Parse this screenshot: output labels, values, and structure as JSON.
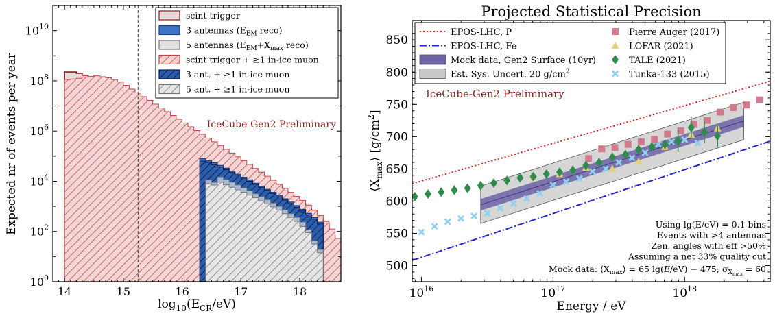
{
  "chart_data": [
    {
      "type": "bar",
      "subtype": "stepped-histogram",
      "xlabel": "log10(E_CR/eV)",
      "ylabel": "Expected nr of events per year",
      "xlim": [
        13.8,
        18.7
      ],
      "ylim_log10": [
        0,
        11
      ],
      "yscale": "log",
      "xticks": [
        "14",
        "15",
        "16",
        "17",
        "18"
      ],
      "yticks": [
        "10^0",
        "10^2",
        "10^4",
        "10^6",
        "10^8",
        "10^10"
      ],
      "annotation": "IceCube-Gen2 Preliminary",
      "vline_x": 15.25,
      "legend_position": "upper-right",
      "legend": [
        {
          "label": "scint trigger",
          "color": "#8b1a1a",
          "fill": "#e8dad8",
          "hatch": false
        },
        {
          "label": "3 antennas (E",
          "sub": "EM",
          "label2": " reco)",
          "color": "#2a5daa",
          "fill": "#3d74c6",
          "hatch": false
        },
        {
          "label": "5 antennas (E",
          "sub": "EM",
          "label2": "+X",
          "sub2": "max",
          "label3": " reco)",
          "color": "#777777",
          "fill": "#e2e2e2",
          "hatch": false
        },
        {
          "label": "scint trigger +  ≥1 in-ice muon",
          "color": "#c04545",
          "fill": "#f3d5d5",
          "hatch": true
        },
        {
          "label": "3 ant. +  ≥1 in-ice muon",
          "color": "#0a2f7a",
          "fill": "#2a5daa",
          "hatch": true
        },
        {
          "label": "5 ant. +  ≥1 in-ice muon",
          "color": "#777777",
          "fill": "#dddddd",
          "hatch": true
        }
      ],
      "bin_edges_start": 14.0,
      "bin_width": 0.1,
      "series": [
        {
          "name": "scint trigger",
          "start": 14.0,
          "log10_values": [
            8.35,
            8.35,
            8.3,
            8.22,
            8.13,
            8.04,
            7.93,
            7.82,
            7.72,
            7.6,
            7.47,
            7.33,
            7.2,
            7.06,
            6.92,
            6.78,
            6.64,
            6.5,
            6.36,
            6.22,
            6.08,
            5.93,
            5.79,
            5.65,
            5.51,
            5.37,
            5.23,
            5.08,
            4.94,
            4.8,
            4.66,
            4.51,
            4.36,
            4.22,
            4.06,
            3.91,
            3.76,
            3.59,
            3.43,
            3.27,
            3.1,
            2.92,
            2.73,
            2.52,
            2.28,
            1.85,
            1.5,
            1.15,
            0.95,
            0.25
          ]
        },
        {
          "name": "3 antennas",
          "start": 16.3,
          "log10_values": [
            4.9,
            4.82,
            4.74,
            4.63,
            4.52,
            4.4,
            4.28,
            4.16,
            4.05,
            3.92,
            3.8,
            3.68,
            3.56,
            3.43,
            3.3,
            3.17,
            3.03,
            2.88,
            2.72,
            2.55,
            2.37
          ]
        },
        {
          "name": "5 antennas",
          "start": 16.4,
          "log10_values": [
            4.05,
            3.95,
            4.17,
            4.06,
            3.96,
            3.85,
            3.73,
            3.62,
            3.5,
            3.38,
            3.26,
            3.13,
            3.0,
            2.86,
            2.71,
            2.56,
            2.37,
            2.07,
            1.62,
            1.28
          ]
        },
        {
          "name": "scint trigger + >=1 in-ice muon",
          "start": 14.0,
          "log10_values": [
            8.05,
            8.07,
            8.1,
            8.15,
            8.18,
            8.2,
            8.16,
            8.12,
            8.05,
            7.95,
            7.82,
            7.67,
            7.52,
            7.37,
            7.22,
            7.07,
            6.92,
            6.77,
            6.62,
            6.47,
            6.32,
            6.17,
            6.02,
            5.87,
            5.72,
            5.57,
            5.42,
            5.27,
            5.12,
            4.97,
            4.82,
            4.67,
            4.51,
            4.36,
            4.2,
            4.04,
            3.88,
            3.72,
            3.56,
            3.4,
            3.23,
            3.05,
            2.85,
            2.64,
            2.4,
            2.1,
            1.72,
            1.35,
            1.05,
            0.45
          ]
        },
        {
          "name": "3 ant. + >=1 in-ice muon",
          "start": 16.3,
          "log10_values": [
            4.8,
            4.75,
            4.66,
            4.57,
            4.46,
            4.35,
            4.24,
            4.12,
            4.0,
            3.88,
            3.76,
            3.64,
            3.51,
            3.38,
            3.25,
            3.11,
            2.97,
            2.82,
            2.66,
            2.49,
            2.3
          ]
        },
        {
          "name": "5 ant. + >=1 in-ice muon",
          "start": 16.4,
          "log10_values": [
            3.9,
            3.85,
            3.96,
            3.86,
            3.76,
            3.66,
            3.56,
            3.45,
            3.34,
            3.22,
            3.1,
            2.98,
            2.85,
            2.71,
            2.56,
            2.4,
            2.2,
            1.95,
            1.5,
            1.15
          ]
        }
      ]
    },
    {
      "type": "scatter",
      "title": "Projected Statistical Precision",
      "xlabel": "Energy / eV",
      "ylabel": "⟨X",
      "ylabel_sub": "max",
      "ylabel_end": "⟩ [g/cm",
      "ylabel_sup": "2",
      "ylabel_close": "]",
      "xscale": "log",
      "xlim_log10": [
        15.93,
        18.65
      ],
      "ylim": [
        475,
        880
      ],
      "xticks": [
        {
          "base": "10",
          "exp": "16"
        },
        {
          "base": "10",
          "exp": "17"
        },
        {
          "base": "10",
          "exp": "18"
        }
      ],
      "yticks": [
        "500",
        "550",
        "600",
        "650",
        "700",
        "750",
        "800",
        "850"
      ],
      "annotation": "IceCube-Gen2 Preliminary",
      "notes": [
        "Using lg(E/eV) = 0.1 bins",
        "Events with >4 antennas",
        "Zen. angles with eff >50%",
        "Assuming a net 33% quality cut"
      ],
      "mock_note": {
        "prefix": "Mock data: ⟨X",
        "sub": "max",
        "mid": "⟩ = 65 lg(",
        "ital": "E",
        "mid2": "/eV) − 475; σ",
        "sub2": "X",
        "sub3": "max",
        "end": " = 60"
      },
      "legend_left": [
        {
          "label": "EPOS-LHC, P",
          "style": "dotted",
          "color": "#e31a1c"
        },
        {
          "label": "EPOS-LHC, Fe",
          "style": "dashdot",
          "color": "#1f24d6"
        },
        {
          "label": "Mock data, Gen2 Surface (10yr)",
          "style": "band",
          "color": "#6b63a6"
        },
        {
          "label": "Est. Sys. Uncert. 20 g/cm",
          "sup": "2",
          "style": "band",
          "color": "#c8c8c8"
        }
      ],
      "legend_right": [
        {
          "label": "Pierre Auger (2017)",
          "marker": "square",
          "color": "#d27b8c"
        },
        {
          "label": "LOFAR (2021)",
          "marker": "triangle",
          "color": "#e6d07a"
        },
        {
          "label": "TALE (2021)",
          "marker": "diamond",
          "color": "#2e8b4a"
        },
        {
          "label": "Tunka-133 (2015)",
          "marker": "cross",
          "color": "#8fd0ef"
        }
      ],
      "lines": {
        "epos_p": {
          "x_log10": [
            15.93,
            18.65
          ],
          "y": [
            627,
            786
          ]
        },
        "epos_fe": {
          "x_log10": [
            15.93,
            18.65
          ],
          "y": [
            508,
            693
          ]
        }
      },
      "mock_band": {
        "x_log10": [
          16.45,
          18.45
        ],
        "y_center": [
          594.25,
          724.25
        ],
        "stat_half": 9,
        "sys_half": 29
      },
      "series": [
        {
          "name": "Pierre Auger (2017)",
          "x_log10": [
            17.27,
            17.37,
            17.47,
            17.57,
            17.67,
            17.77,
            17.87,
            17.97,
            18.07,
            18.17,
            18.27,
            18.37,
            18.47,
            18.57,
            18.67
          ],
          "y": [
            666,
            681,
            683,
            688,
            692,
            696,
            704,
            709,
            719,
            725,
            738,
            745,
            749,
            757,
            758
          ]
        },
        {
          "name": "LOFAR (2021)",
          "x_log10": [
            16.85,
            17.05,
            17.25,
            17.45,
            17.65,
            17.85,
            18.05,
            18.25
          ],
          "y": [
            638,
            642,
            652,
            650,
            661,
            684,
            703,
            713
          ]
        },
        {
          "name": "TALE (2021)",
          "x_log10": [
            15.95,
            16.05,
            16.15,
            16.25,
            16.35,
            16.45,
            16.55,
            16.65,
            16.75,
            16.85,
            16.95,
            17.05,
            17.15,
            17.25,
            17.35,
            17.45,
            17.55,
            17.65,
            17.75,
            17.85,
            17.95,
            18.05,
            18.15,
            18.25
          ],
          "y": [
            607,
            611,
            614,
            617,
            620,
            624,
            628,
            632,
            636,
            638,
            642,
            645,
            648,
            655,
            660,
            668,
            672,
            680,
            684,
            688,
            693,
            714,
            707,
            701
          ]
        },
        {
          "name": "Tunka-133 (2015)",
          "x_log10": [
            16.0,
            16.1,
            16.2,
            16.3,
            16.4,
            16.5,
            16.6,
            16.7,
            16.8,
            16.9,
            17.0,
            17.1,
            17.2,
            17.3,
            17.4,
            17.5,
            17.6,
            17.7,
            17.8,
            17.9,
            18.0,
            18.1
          ],
          "y": [
            552,
            561,
            568,
            573,
            577,
            581,
            589,
            596,
            604,
            612,
            625,
            630,
            635,
            646,
            650,
            660,
            667,
            675,
            688,
            692,
            695,
            690
          ]
        }
      ]
    }
  ]
}
